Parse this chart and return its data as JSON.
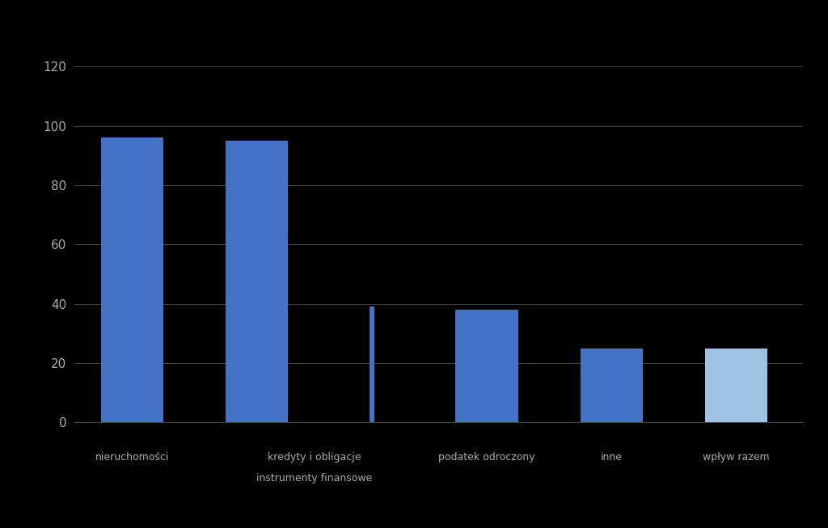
{
  "values": [
    96,
    95,
    39,
    38,
    25,
    25
  ],
  "bar_colors": [
    "#4472C4",
    "#4472C4",
    "#4472C4",
    "#4472C4",
    "#4472C4",
    "#9DC3E6"
  ],
  "bar_widths": [
    0.65,
    0.65,
    0.05,
    0.65,
    0.65,
    0.65
  ],
  "x_positions": [
    0,
    1.3,
    2.5,
    3.7,
    5.0,
    6.3
  ],
  "ylim": [
    0,
    130
  ],
  "yticks": [
    0,
    20,
    40,
    60,
    80,
    100,
    120
  ],
  "background_color": "#000000",
  "text_color": "#AAAAAA",
  "grid_color": "#444444",
  "labels": [
    {
      "x": 0,
      "line1": "nieruchomości",
      "line2": null
    },
    {
      "x": 1.9,
      "line1": "kredyty i obligacje",
      "line2": "instrumenty finansowe"
    },
    {
      "x": 3.7,
      "line1": "podatek odroczony",
      "line2": null
    },
    {
      "x": 5.0,
      "line1": "inne",
      "line2": null
    },
    {
      "x": 6.3,
      "line1": "wpływ razem",
      "line2": null
    }
  ]
}
